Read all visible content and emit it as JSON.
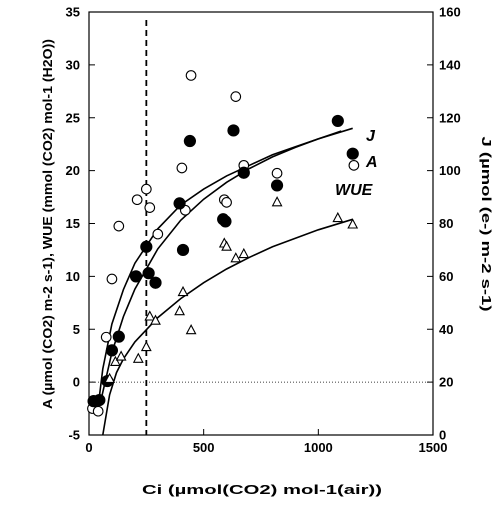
{
  "chart_data": {
    "type": "scatter",
    "xlabel": "Ci (µmol(CO2) mol-1(air))",
    "ylabel_left": "A (µmol (CO2) m-2 s-1), WUE (mmol (CO2) mol-1 (H2O))",
    "ylabel_right": "J (µmol (e-) m-2 s-1)",
    "xlim": [
      0,
      1500
    ],
    "ylim_left": [
      -5,
      35
    ],
    "ylim_right": [
      0,
      160
    ],
    "x_ticks": [
      "0",
      "500",
      "1000",
      "1500"
    ],
    "y_left_ticks": [
      "-5",
      "0",
      "5",
      "10",
      "15",
      "20",
      "25",
      "30",
      "35"
    ],
    "y_right_ticks": [
      "0",
      "20",
      "40",
      "60",
      "80",
      "100",
      "120",
      "140",
      "160"
    ],
    "reference_vertical_x": 250,
    "reference_horizontal_y": 0,
    "grid": false,
    "series": [
      {
        "name": "J",
        "axis": "right",
        "marker": "open-circle",
        "points": [
          [
            15,
            10
          ],
          [
            40,
            9
          ],
          [
            75,
            37
          ],
          [
            100,
            59
          ],
          [
            130,
            79
          ],
          [
            210,
            89
          ],
          [
            250,
            93
          ],
          [
            265,
            86
          ],
          [
            300,
            76
          ],
          [
            405,
            101
          ],
          [
            420,
            85
          ],
          [
            445,
            136
          ],
          [
            590,
            89
          ],
          [
            600,
            88
          ],
          [
            640,
            128
          ],
          [
            675,
            102
          ],
          [
            820,
            99
          ],
          [
            1155,
            102
          ]
        ],
        "fit": [
          [
            40,
            11
          ],
          [
            60,
            25
          ],
          [
            100,
            42
          ],
          [
            150,
            55
          ],
          [
            200,
            65
          ],
          [
            300,
            78
          ],
          [
            400,
            87
          ],
          [
            500,
            93
          ],
          [
            600,
            98
          ],
          [
            700,
            102
          ],
          [
            800,
            106
          ],
          [
            900,
            109
          ],
          [
            1000,
            112
          ],
          [
            1100,
            115
          ]
        ]
      },
      {
        "name": "A",
        "axis": "left",
        "marker": "filled-circle",
        "points": [
          [
            20,
            -1.8
          ],
          [
            45,
            -1.7
          ],
          [
            80,
            0.1
          ],
          [
            100,
            3.0
          ],
          [
            130,
            4.3
          ],
          [
            205,
            10.0
          ],
          [
            250,
            12.8
          ],
          [
            260,
            10.3
          ],
          [
            290,
            9.4
          ],
          [
            395,
            16.9
          ],
          [
            410,
            12.5
          ],
          [
            440,
            22.8
          ],
          [
            585,
            15.4
          ],
          [
            595,
            15.2
          ],
          [
            630,
            23.8
          ],
          [
            675,
            19.8
          ],
          [
            820,
            18.6
          ],
          [
            1085,
            24.7
          ],
          [
            1150,
            21.6
          ]
        ],
        "fit": [
          [
            50,
            -1.9
          ],
          [
            100,
            2.8
          ],
          [
            150,
            6.2
          ],
          [
            200,
            8.8
          ],
          [
            300,
            12.6
          ],
          [
            400,
            15.3
          ],
          [
            500,
            17.3
          ],
          [
            600,
            18.9
          ],
          [
            700,
            20.2
          ],
          [
            800,
            21.3
          ],
          [
            900,
            22.2
          ],
          [
            1000,
            23.0
          ],
          [
            1150,
            24.0
          ]
        ]
      },
      {
        "name": "WUE",
        "axis": "left",
        "marker": "open-triangle",
        "points": [
          [
            90,
            0.3
          ],
          [
            115,
            1.9
          ],
          [
            140,
            2.4
          ],
          [
            215,
            2.2
          ],
          [
            250,
            3.3
          ],
          [
            265,
            6.2
          ],
          [
            290,
            5.8
          ],
          [
            395,
            6.7
          ],
          [
            410,
            8.5
          ],
          [
            445,
            4.9
          ],
          [
            590,
            13.1
          ],
          [
            600,
            12.8
          ],
          [
            640,
            11.7
          ],
          [
            675,
            12.1
          ],
          [
            820,
            17.0
          ],
          [
            1085,
            15.5
          ],
          [
            1150,
            14.9
          ]
        ],
        "fit": [
          [
            60,
            -5.0
          ],
          [
            90,
            -1.2
          ],
          [
            120,
            0.9
          ],
          [
            150,
            2.2
          ],
          [
            200,
            3.8
          ],
          [
            300,
            6.1
          ],
          [
            400,
            7.9
          ],
          [
            500,
            9.4
          ],
          [
            600,
            10.7
          ],
          [
            700,
            11.8
          ],
          [
            800,
            12.8
          ],
          [
            900,
            13.6
          ],
          [
            1000,
            14.4
          ],
          [
            1150,
            15.4
          ]
        ]
      }
    ],
    "curve_labels": [
      "J",
      "A",
      "WUE"
    ]
  }
}
